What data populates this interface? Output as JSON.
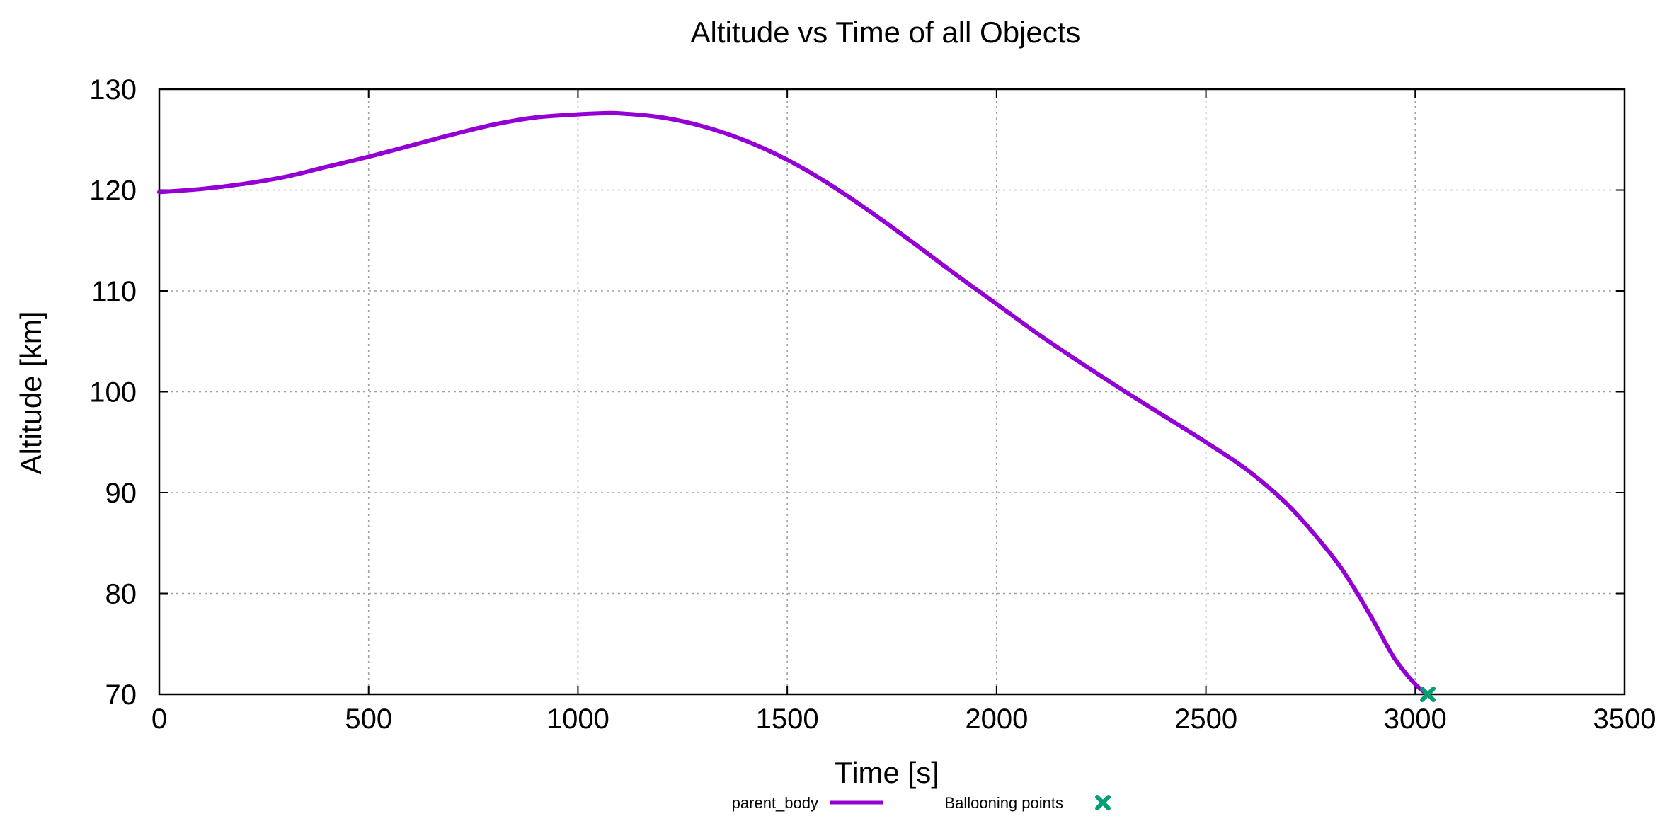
{
  "chart_data": {
    "type": "line",
    "title": "Altitude vs Time of all Objects",
    "xlabel": "Time [s]",
    "ylabel": "Altitude [km]",
    "xlim": [
      0,
      3500
    ],
    "ylim": [
      70,
      130
    ],
    "xticks": [
      0,
      500,
      1000,
      1500,
      2000,
      2500,
      3000,
      3500
    ],
    "yticks": [
      70,
      80,
      90,
      100,
      110,
      120,
      130
    ],
    "grid": true,
    "legend_position": "bottom",
    "series": [
      {
        "name": "parent_body",
        "kind": "line",
        "color": "#9400d3",
        "x": [
          0,
          100,
          200,
          300,
          400,
          500,
          600,
          700,
          800,
          900,
          1000,
          1050,
          1100,
          1200,
          1300,
          1400,
          1500,
          1600,
          1700,
          1800,
          1900,
          2000,
          2100,
          2200,
          2300,
          2400,
          2500,
          2600,
          2700,
          2800,
          2850,
          2900,
          2950,
          3000,
          3030
        ],
        "y": [
          119.8,
          120.1,
          120.6,
          121.3,
          122.3,
          123.3,
          124.4,
          125.5,
          126.5,
          127.2,
          127.5,
          127.6,
          127.6,
          127.2,
          126.3,
          124.9,
          123.0,
          120.6,
          117.8,
          114.8,
          111.7,
          108.7,
          105.7,
          102.9,
          100.2,
          97.6,
          95.0,
          92.2,
          88.6,
          83.8,
          80.8,
          77.3,
          73.6,
          71.0,
          70.0
        ]
      },
      {
        "name": "Ballooning points",
        "kind": "scatter",
        "marker": "x",
        "color": "#009e73",
        "x": [
          3030
        ],
        "y": [
          70.0
        ]
      }
    ]
  }
}
